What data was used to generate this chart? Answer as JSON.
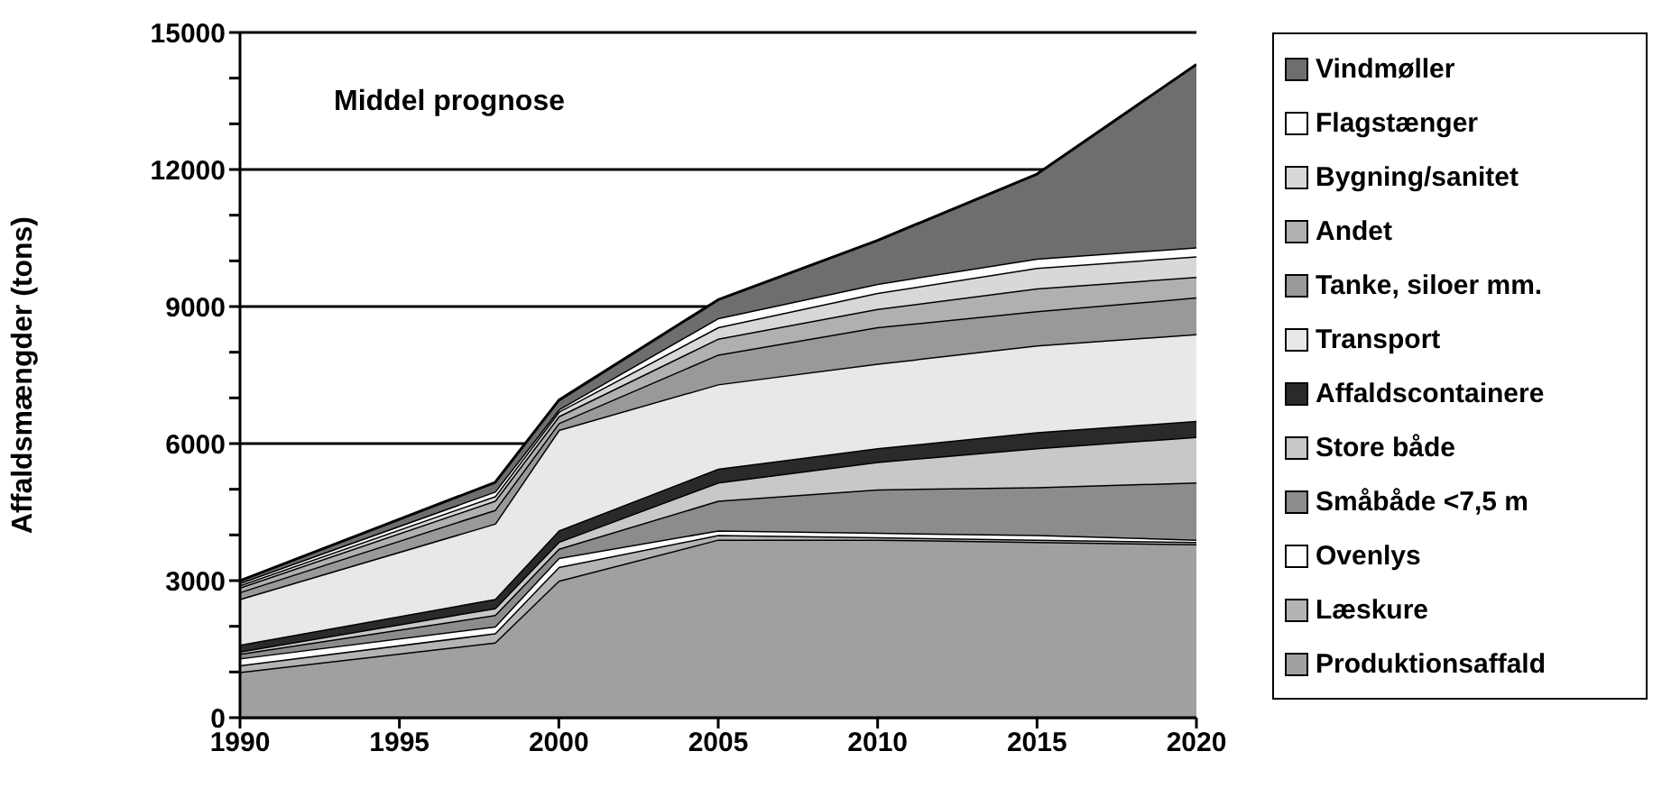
{
  "chart_data": {
    "type": "area",
    "stacked": true,
    "title": "Middel prognose",
    "ylabel": "Affaldsmængder (tons)",
    "x": [
      1990,
      1998,
      2000,
      2005,
      2010,
      2015,
      2020
    ],
    "xlim": [
      1990,
      2020
    ],
    "xticks": [
      1990,
      1995,
      2000,
      2005,
      2010,
      2015,
      2020
    ],
    "ylim": [
      0,
      15000
    ],
    "yticks": [
      0,
      {
        "value": 1000,
        "label": null
      },
      {
        "value": 2000,
        "label": null
      },
      3000,
      {
        "value": 4000,
        "label": null
      },
      {
        "value": 5000,
        "label": null
      },
      6000,
      {
        "value": 7000,
        "label": null
      },
      {
        "value": 8000,
        "label": null
      },
      9000,
      {
        "value": 10000,
        "label": null
      },
      {
        "value": 11000,
        "label": null
      },
      12000,
      {
        "value": 13000,
        "label": null
      },
      {
        "value": 14000,
        "label": null
      },
      15000
    ],
    "grid": "y",
    "legend": "right",
    "series": [
      {
        "name": "Produktionsaffald",
        "color": "#a0a0a0",
        "values": [
          1000,
          1650,
          3000,
          3900,
          3900,
          3850,
          3800
        ]
      },
      {
        "name": "Læskure",
        "color": "#b4b4b4",
        "values": [
          150,
          200,
          300,
          100,
          50,
          50,
          50
        ]
      },
      {
        "name": "Ovenlys",
        "color": "#ffffff",
        "values": [
          150,
          150,
          200,
          100,
          100,
          100,
          50
        ]
      },
      {
        "name": "Småbåde <7,5 m",
        "color": "#8c8c8c",
        "values": [
          100,
          250,
          200,
          650,
          950,
          1050,
          1250
        ]
      },
      {
        "name": "Store både",
        "color": "#c8c8c8",
        "values": [
          50,
          150,
          150,
          400,
          600,
          850,
          1000
        ]
      },
      {
        "name": "Affaldscontainere",
        "color": "#2a2a2a",
        "values": [
          150,
          200,
          250,
          300,
          300,
          350,
          350
        ]
      },
      {
        "name": "Transport",
        "color": "#e8e8e8",
        "values": [
          1000,
          1650,
          2200,
          1850,
          1850,
          1900,
          1900
        ]
      },
      {
        "name": "Tanke, siloer mm.",
        "color": "#999999",
        "values": [
          150,
          300,
          150,
          650,
          800,
          750,
          800
        ]
      },
      {
        "name": "Andet",
        "color": "#b0b0b0",
        "values": [
          100,
          200,
          150,
          350,
          400,
          500,
          450
        ]
      },
      {
        "name": "Bygning/sanitet",
        "color": "#d8d8d8",
        "values": [
          50,
          100,
          100,
          250,
          350,
          450,
          450
        ]
      },
      {
        "name": "Flagstænger",
        "color": "#ffffff",
        "values": [
          50,
          100,
          50,
          200,
          200,
          200,
          200
        ]
      },
      {
        "name": "Vindmøller",
        "color": "#6e6e6e",
        "values": [
          50,
          200,
          200,
          400,
          950,
          1850,
          4000
        ]
      }
    ]
  }
}
